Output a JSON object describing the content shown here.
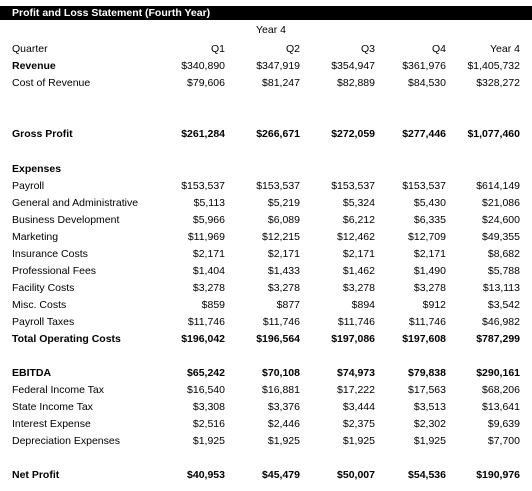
{
  "title": "Profit and Loss Statement (Fourth Year)",
  "year_label": "Year 4",
  "header": {
    "label": "Quarter",
    "cols": [
      "Q1",
      "Q2",
      "Q3",
      "Q4",
      "Year 4"
    ]
  },
  "revenue": {
    "label": "Revenue",
    "values": [
      "$340,890",
      "$347,919",
      "$354,947",
      "$361,976",
      "$1,405,732"
    ]
  },
  "cost_of_revenue": {
    "label": "Cost of Revenue",
    "values": [
      "$79,606",
      "$81,247",
      "$82,889",
      "$84,530",
      "$328,272"
    ]
  },
  "gross_profit": {
    "label": "Gross Profit",
    "values": [
      "$261,284",
      "$266,671",
      "$272,059",
      "$277,446",
      "$1,077,460"
    ]
  },
  "expenses_heading": "Expenses",
  "expenses": [
    {
      "label": "Payroll",
      "values": [
        "$153,537",
        "$153,537",
        "$153,537",
        "$153,537",
        "$614,149"
      ]
    },
    {
      "label": "General and Administrative",
      "values": [
        "$5,113",
        "$5,219",
        "$5,324",
        "$5,430",
        "$21,086"
      ]
    },
    {
      "label": "Business Development",
      "values": [
        "$5,966",
        "$6,089",
        "$6,212",
        "$6,335",
        "$24,600"
      ]
    },
    {
      "label": "Marketing",
      "values": [
        "$11,969",
        "$12,215",
        "$12,462",
        "$12,709",
        "$49,355"
      ]
    },
    {
      "label": "Insurance Costs",
      "values": [
        "$2,171",
        "$2,171",
        "$2,171",
        "$2,171",
        "$8,682"
      ]
    },
    {
      "label": "Professional Fees",
      "values": [
        "$1,404",
        "$1,433",
        "$1,462",
        "$1,490",
        "$5,788"
      ]
    },
    {
      "label": "Facility Costs",
      "values": [
        "$3,278",
        "$3,278",
        "$3,278",
        "$3,278",
        "$13,113"
      ]
    },
    {
      "label": "Misc. Costs",
      "values": [
        "$859",
        "$877",
        "$894",
        "$912",
        "$3,542"
      ]
    },
    {
      "label": "Payroll Taxes",
      "values": [
        "$11,746",
        "$11,746",
        "$11,746",
        "$11,746",
        "$46,982"
      ]
    }
  ],
  "total_operating_costs": {
    "label": "Total Operating Costs",
    "values": [
      "$196,042",
      "$196,564",
      "$197,086",
      "$197,608",
      "$787,299"
    ]
  },
  "ebitda": {
    "label": "EBITDA",
    "values": [
      "$65,242",
      "$70,108",
      "$74,973",
      "$79,838",
      "$290,161"
    ]
  },
  "below_ebitda": [
    {
      "label": "Federal Income Tax",
      "values": [
        "$16,540",
        "$16,881",
        "$17,222",
        "$17,563",
        "$68,206"
      ]
    },
    {
      "label": "State Income Tax",
      "values": [
        "$3,308",
        "$3,376",
        "$3,444",
        "$3,513",
        "$13,641"
      ]
    },
    {
      "label": "Interest Expense",
      "values": [
        "$2,516",
        "$2,446",
        "$2,375",
        "$2,302",
        "$9,639"
      ]
    },
    {
      "label": "Depreciation Expenses",
      "values": [
        "$1,925",
        "$1,925",
        "$1,925",
        "$1,925",
        "$7,700"
      ]
    }
  ],
  "net_profit": {
    "label": "Net Profit",
    "values": [
      "$40,953",
      "$45,479",
      "$50,007",
      "$54,536",
      "$190,976"
    ]
  }
}
